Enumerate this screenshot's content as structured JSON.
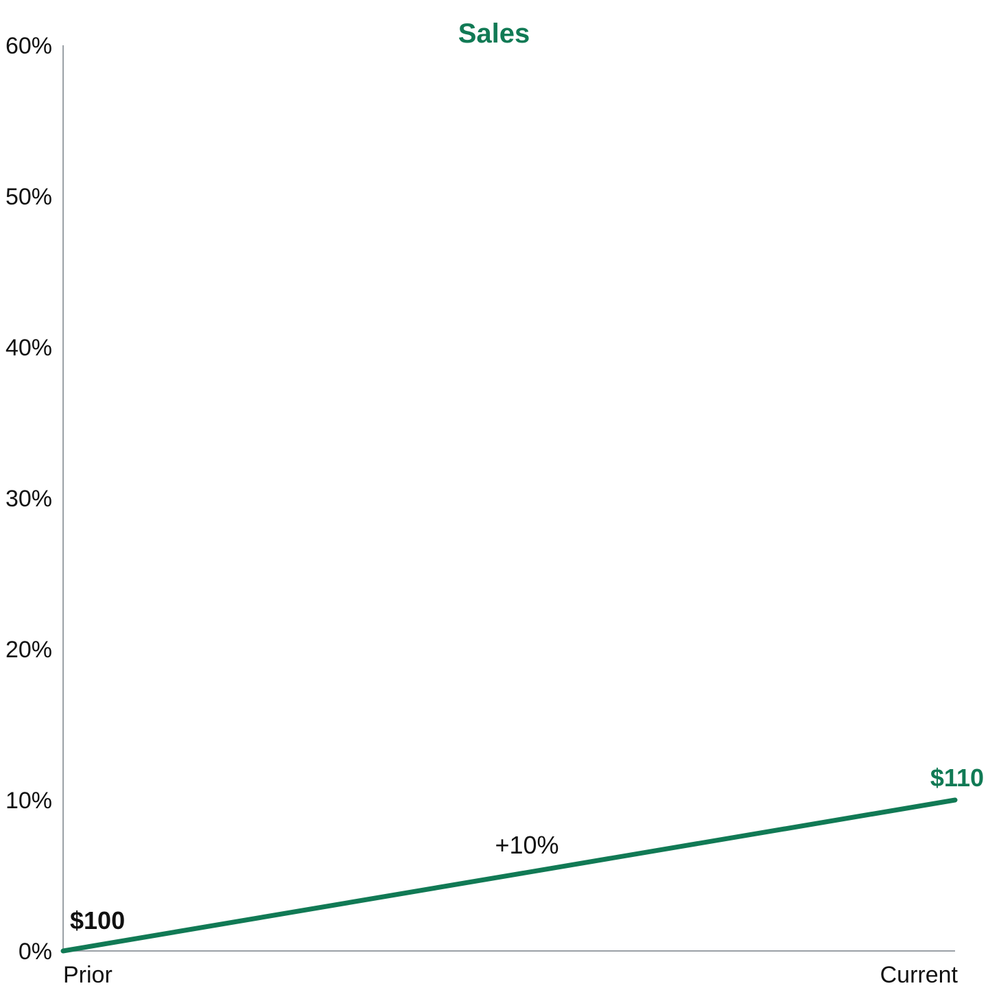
{
  "colors": {
    "accent": "#117a55",
    "axis": "#9aa0a6",
    "text": "#111111"
  },
  "chart_data": {
    "type": "line",
    "title": "Sales",
    "xlabel": "",
    "ylabel": "",
    "categories": [
      "Prior",
      "Current"
    ],
    "ylim": [
      0,
      60
    ],
    "y_ticks": [
      "0%",
      "10%",
      "20%",
      "30%",
      "40%",
      "50%",
      "60%"
    ],
    "grid": false,
    "series": [
      {
        "values": [
          0,
          10
        ]
      }
    ],
    "annotations": {
      "start_label": "$100",
      "end_label": "$110",
      "change_label": "+10%"
    }
  }
}
